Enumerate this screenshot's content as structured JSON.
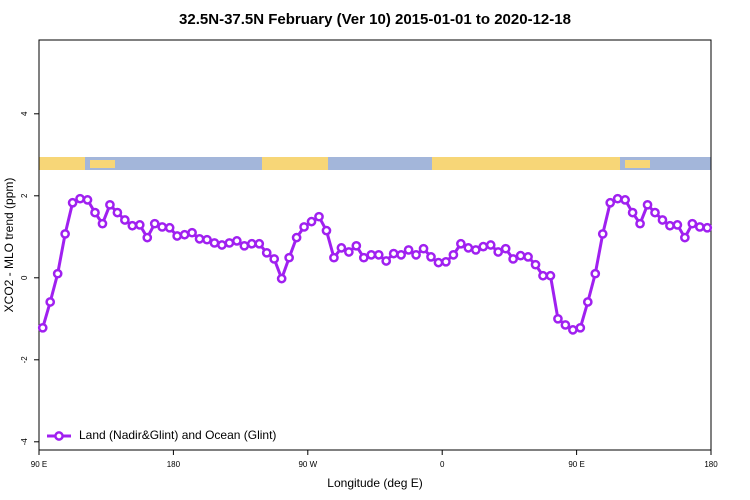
{
  "chart_data": {
    "type": "line",
    "title": "32.5N-37.5N February (Ver 10)   2015-01-01 to 2020-12-18",
    "xlabel": "Longitude (deg E)",
    "ylabel": "XCO2 - MLO trend (ppm)",
    "x": [
      92.5,
      97.5,
      102.5,
      107.5,
      112.5,
      117.5,
      122.5,
      127.5,
      132.5,
      137.5,
      142.5,
      147.5,
      152.5,
      157.5,
      162.5,
      167.5,
      172.5,
      177.5,
      182.5,
      187.5,
      192.5,
      197.5,
      202.5,
      207.5,
      212.5,
      217.5,
      222.5,
      227.5,
      232.5,
      237.5,
      242.5,
      247.5,
      252.5,
      257.5,
      262.5,
      267.5,
      272.5,
      277.5,
      282.5,
      287.5,
      292.5,
      297.5,
      302.5,
      307.5,
      312.5,
      317.5,
      322.5,
      327.5,
      332.5,
      337.5,
      342.5,
      347.5,
      352.5,
      357.5,
      362.5,
      367.5,
      372.5,
      377.5,
      382.5,
      387.5,
      392.5,
      397.5,
      402.5,
      407.5,
      412.5,
      417.5,
      422.5,
      427.5,
      432.5,
      437.5,
      442.5,
      447.5,
      452.5,
      457.5,
      462.5,
      467.5,
      472.5,
      477.5,
      482.5,
      487.5,
      492.5,
      497.5,
      502.5,
      507.5,
      512.5,
      517.5,
      522.5,
      527.5,
      532.5,
      537.5
    ],
    "series": [
      {
        "name": "Land (Nadir&Glint) and Ocean (Glint)",
        "color": "#a020f0",
        "values": [
          -1.22,
          -0.59,
          0.1,
          1.07,
          1.83,
          1.93,
          1.9,
          1.59,
          1.32,
          1.78,
          1.59,
          1.41,
          1.27,
          1.29,
          0.98,
          1.32,
          1.24,
          1.22,
          1.02,
          1.05,
          1.1,
          0.95,
          0.93,
          0.85,
          0.8,
          0.85,
          0.9,
          0.78,
          0.83,
          0.83,
          0.61,
          0.46,
          -0.02,
          0.49,
          0.98,
          1.24,
          1.37,
          1.49,
          1.15,
          0.49,
          0.73,
          0.63,
          0.78,
          0.49,
          0.56,
          0.56,
          0.41,
          0.59,
          0.56,
          0.68,
          0.56,
          0.71,
          0.51,
          0.37,
          0.39,
          0.56,
          0.83,
          0.73,
          0.68,
          0.76,
          0.8,
          0.63,
          0.71,
          0.46,
          0.54,
          0.51,
          0.32,
          0.05,
          0.05,
          -1.0,
          -1.15,
          -1.27,
          -1.22,
          -0.59,
          0.1,
          1.07,
          1.83,
          1.93,
          1.9,
          1.59,
          1.32,
          1.78,
          1.59,
          1.41,
          1.27,
          1.29,
          0.98,
          1.32,
          1.24,
          1.22
        ]
      }
    ],
    "xlim": [
      90,
      540
    ],
    "xticks": [
      {
        "value": 90,
        "label": "90 E"
      },
      180,
      {
        "value": 270,
        "label": "90 W"
      },
      {
        "value": 360,
        "label": "0"
      },
      {
        "value": 450,
        "label": "90 E"
      },
      {
        "value": 540,
        "label": "180"
      }
    ],
    "ylim": [
      -4.2,
      5.8
    ],
    "yticks": [
      -4,
      -2,
      0,
      2,
      4
    ],
    "legend": "bottom-left"
  }
}
